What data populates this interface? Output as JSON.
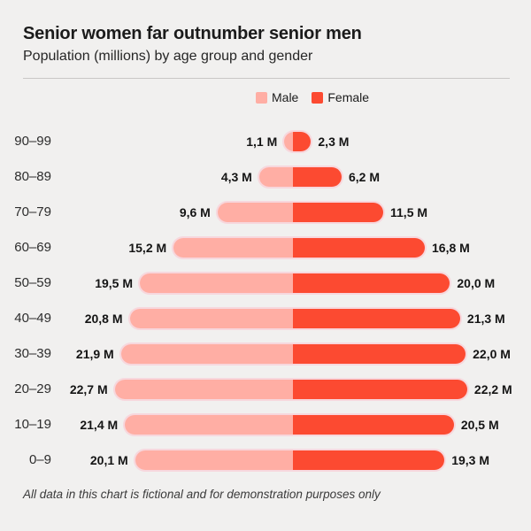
{
  "header": {
    "title": "Senior women far outnumber senior men",
    "subtitle": "Population (millions) by age group and gender"
  },
  "legend": {
    "male_label": "Male",
    "female_label": "Female"
  },
  "footer": {
    "note": "All data in this chart is fictional and for demonstration purposes only"
  },
  "colors": {
    "background": "#f1f0ef",
    "male": "#ffaea4",
    "female": "#fc4a31",
    "halo": "rgba(255,183,200,0.45)",
    "text": "#1b1b1b"
  },
  "chart_data": {
    "type": "bar",
    "orientation": "horizontal-diverging",
    "title": "Senior women far outnumber senior men",
    "subtitle": "Population (millions) by age group and gender",
    "unit": "M",
    "xlabel": "",
    "ylabel": "",
    "grid": false,
    "legend_position": "top-center",
    "categories": [
      "90–99",
      "80–89",
      "70–79",
      "60–69",
      "50–59",
      "40–49",
      "30–39",
      "20–29",
      "10–19",
      "0–9"
    ],
    "series": [
      {
        "name": "Male",
        "values": [
          1.1,
          4.3,
          9.6,
          15.2,
          19.5,
          20.8,
          21.9,
          22.7,
          21.4,
          20.1
        ],
        "labels": [
          "1,1 M",
          "4,3 M",
          "9,6 M",
          "15,2 M",
          "19,5 M",
          "20,8 M",
          "21,9 M",
          "22,7 M",
          "21,4 M",
          "20,1 M"
        ]
      },
      {
        "name": "Female",
        "values": [
          2.3,
          6.2,
          11.5,
          16.8,
          20.0,
          21.3,
          22.0,
          22.2,
          20.5,
          19.3
        ],
        "labels": [
          "2,3 M",
          "6,2 M",
          "11,5 M",
          "16,8 M",
          "20,0 M",
          "21,3 M",
          "22,0 M",
          "22,2 M",
          "20,5 M",
          "19,3 M"
        ]
      }
    ],
    "value_range_per_side": [
      0,
      23
    ]
  }
}
